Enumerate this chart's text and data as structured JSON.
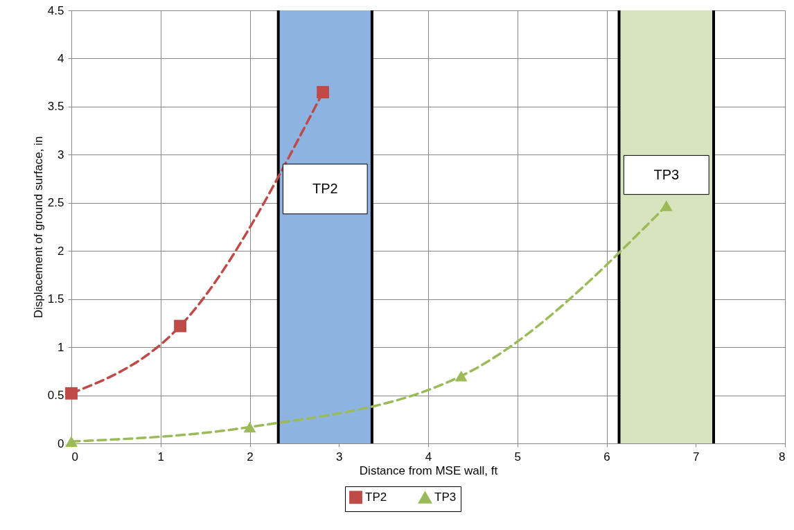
{
  "chart_data": {
    "type": "line",
    "xlabel": "Distance from MSE wall, ft",
    "ylabel": "Displacement of ground surface, in",
    "series": [
      {
        "name": "TP2",
        "color": "#be4b48",
        "marker": "square",
        "x": [
          0,
          1.22,
          2.82
        ],
        "values": [
          0.52,
          1.22,
          3.65
        ]
      },
      {
        "name": "TP3",
        "color": "#9bbb59",
        "marker": "triangle",
        "x": [
          0,
          2.0,
          4.37,
          6.67
        ],
        "values": [
          0.02,
          0.17,
          0.7,
          2.47
        ]
      }
    ],
    "line_style": "dashed",
    "xlim": [
      0,
      8
    ],
    "xticks": [
      0,
      1,
      2,
      3,
      4,
      5,
      6,
      7,
      8
    ],
    "ylim": [
      0,
      4.5
    ],
    "yticks": [
      0,
      0.5,
      1,
      1.5,
      2,
      2.5,
      3,
      3.5,
      4,
      4.5
    ],
    "grid": true,
    "legend": "bottom",
    "bands": [
      {
        "axis": "x",
        "from": 2.32,
        "to": 3.37,
        "label": "TP2",
        "color": "#8db3e2"
      },
      {
        "axis": "x",
        "from": 6.14,
        "to": 7.2,
        "label": "TP3",
        "color": "#d7e4bd"
      }
    ],
    "ref_lines": [
      {
        "axis": "x",
        "value": 2.32,
        "color": "#000000"
      },
      {
        "axis": "x",
        "value": 3.37,
        "color": "#000000"
      },
      {
        "axis": "x",
        "value": 6.14,
        "color": "#000000"
      },
      {
        "axis": "x",
        "value": 7.2,
        "color": "#000000"
      }
    ]
  }
}
